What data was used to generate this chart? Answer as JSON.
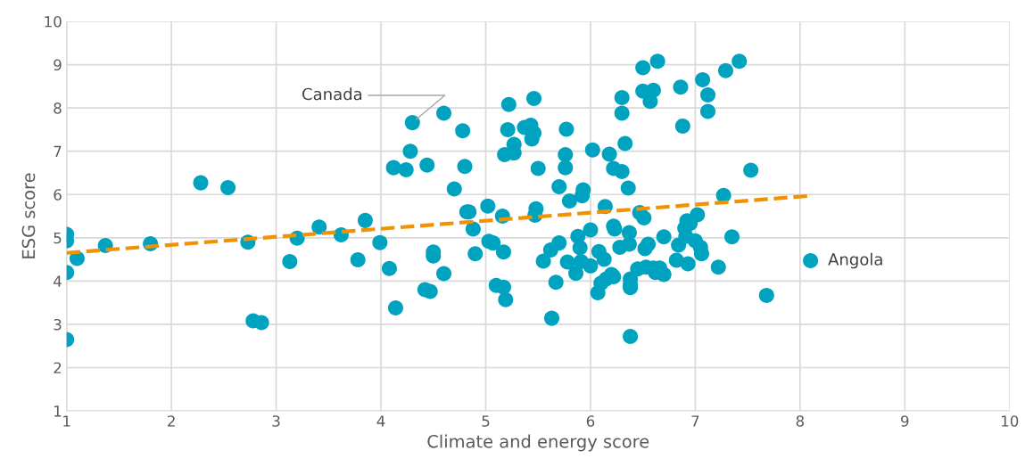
{
  "chart_data": {
    "type": "scatter",
    "xlabel": "Climate and energy score",
    "ylabel": "ESG score",
    "xlim": [
      1,
      10
    ],
    "ylim": [
      1,
      10
    ],
    "xticks": [
      1,
      2,
      3,
      4,
      5,
      6,
      7,
      8,
      9,
      10
    ],
    "yticks": [
      1,
      2,
      3,
      4,
      5,
      6,
      7,
      8,
      9,
      10
    ],
    "grid": true,
    "legend": false,
    "series": [
      {
        "color": "#00a3bf",
        "marker": "circle",
        "x": [
          1.0,
          1.0,
          1.0,
          1.0,
          1.1,
          1.37,
          1.8,
          2.28,
          2.54,
          2.73,
          2.78,
          2.86,
          3.13,
          3.2,
          3.41,
          3.62,
          3.78,
          3.85,
          3.99,
          4.08,
          4.14,
          4.12,
          4.24,
          4.28,
          4.3,
          4.42,
          4.44,
          4.47,
          4.5,
          4.5,
          4.6,
          4.6,
          4.7,
          4.78,
          4.8,
          4.82,
          4.84,
          4.88,
          4.9,
          5.02,
          5.03,
          5.07,
          5.1,
          5.16,
          5.17,
          5.17,
          5.19,
          5.18,
          5.21,
          5.22,
          5.27,
          5.27,
          5.37,
          5.43,
          5.44,
          5.46,
          5.46,
          5.47,
          5.48,
          5.5,
          5.55,
          5.62,
          5.63,
          5.67,
          5.7,
          5.7,
          5.76,
          5.76,
          5.77,
          5.78,
          5.8,
          5.86,
          5.88,
          5.9,
          5.91,
          5.93,
          5.92,
          6.0,
          6.0,
          6.02,
          6.07,
          6.08,
          6.1,
          6.13,
          6.14,
          6.15,
          6.18,
          6.2,
          6.22,
          6.23,
          6.22,
          6.22,
          6.28,
          6.3,
          6.3,
          6.3,
          6.33,
          6.36,
          6.37,
          6.37,
          6.38,
          6.38,
          6.38,
          6.38,
          6.45,
          6.47,
          6.5,
          6.5,
          6.51,
          6.52,
          6.53,
          6.55,
          6.57,
          6.6,
          6.6,
          6.62,
          6.64,
          6.66,
          6.7,
          6.7,
          6.82,
          6.84,
          6.86,
          6.88,
          6.9,
          6.91,
          6.92,
          6.93,
          6.95,
          7.0,
          7.02,
          7.05,
          7.06,
          7.07,
          7.12,
          7.12,
          7.22,
          7.27,
          7.29,
          7.35,
          7.42,
          7.53,
          7.68,
          8.1
        ],
        "values": [
          5.08,
          4.93,
          4.2,
          2.65,
          4.52,
          4.82,
          4.86,
          6.27,
          6.16,
          4.9,
          3.08,
          3.04,
          4.45,
          4.99,
          5.25,
          5.07,
          4.49,
          5.4,
          4.89,
          4.29,
          3.38,
          6.62,
          6.57,
          7.0,
          7.66,
          3.8,
          6.68,
          3.76,
          4.58,
          4.67,
          4.17,
          7.88,
          6.13,
          7.47,
          6.65,
          5.6,
          5.6,
          5.2,
          4.63,
          5.73,
          4.92,
          4.88,
          3.9,
          5.5,
          3.86,
          4.67,
          3.57,
          6.92,
          7.5,
          8.08,
          7.16,
          6.96,
          7.55,
          7.6,
          7.28,
          8.22,
          7.42,
          5.52,
          5.67,
          6.6,
          4.46,
          4.72,
          3.14,
          3.97,
          6.18,
          4.88,
          6.92,
          6.62,
          7.51,
          4.44,
          5.85,
          4.18,
          5.03,
          4.77,
          4.45,
          6.11,
          5.97,
          4.35,
          5.18,
          7.03,
          3.73,
          4.68,
          3.95,
          4.5,
          5.72,
          4.05,
          6.93,
          4.15,
          5.27,
          5.2,
          6.6,
          4.1,
          4.78,
          8.24,
          7.88,
          6.53,
          7.18,
          6.15,
          5.12,
          4.85,
          4.05,
          3.92,
          3.85,
          2.72,
          4.28,
          5.58,
          8.93,
          8.39,
          5.46,
          4.75,
          4.32,
          4.85,
          8.15,
          8.41,
          4.3,
          4.2,
          9.08,
          4.3,
          4.15,
          5.02,
          4.48,
          4.83,
          8.48,
          7.58,
          5.22,
          5.03,
          5.39,
          4.4,
          5.33,
          4.93,
          5.53,
          4.78,
          4.63,
          8.65,
          8.3,
          7.92,
          4.32,
          5.98,
          8.86,
          5.02,
          9.08,
          6.56,
          3.67,
          4.47
        ]
      },
      {
        "type": "line",
        "color": "#f39200",
        "line_style": "dashed",
        "marker": "none",
        "x": [
          1,
          8.1
        ],
        "values": [
          4.65,
          5.97
        ]
      }
    ],
    "annotations": [
      {
        "text": "Canada",
        "x": 4.3,
        "y": 7.66
      },
      {
        "text": "Angola",
        "x": 8.1,
        "y": 4.47
      }
    ]
  }
}
